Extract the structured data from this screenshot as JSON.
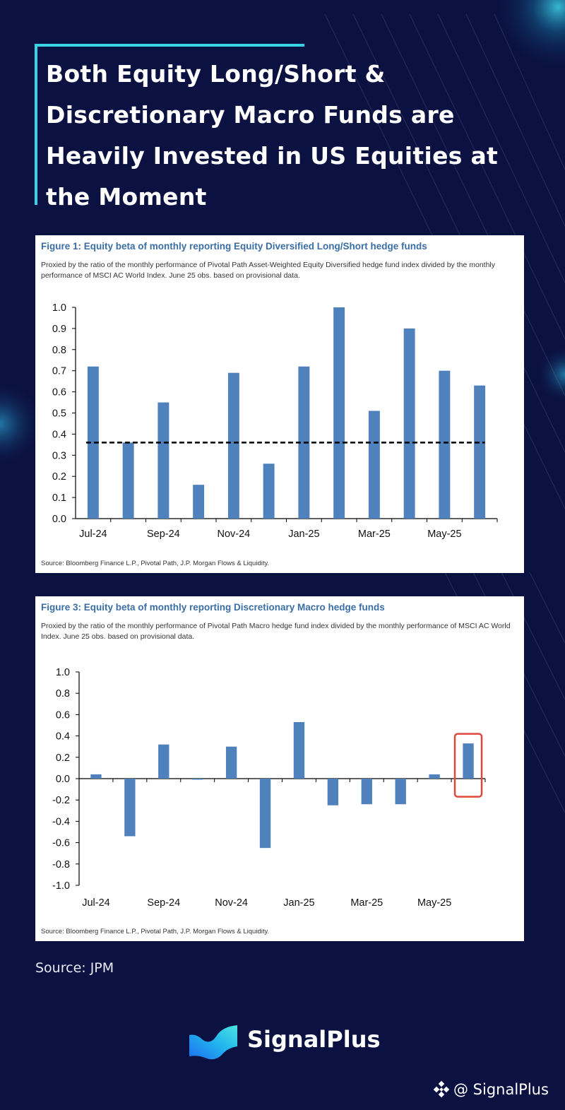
{
  "headline": "Both Equity Long/Short & Discretionary Macro Funds are Heavily Invested in US Equities at the Moment",
  "source_note": "Source: JPM",
  "brand": {
    "name": "SignalPlus",
    "handle": "@ SignalPlus",
    "logo_icon": "signalplus-wave-logo",
    "handle_icon": "diamond-logo-icon"
  },
  "colors": {
    "background": "#0b1242",
    "accent": "#39d3e6",
    "bar": "#4f81bd",
    "highlight": "#e0473c",
    "title": "#3a6ea5"
  },
  "chart_data": [
    {
      "type": "bar",
      "title": "Figure 1: Equity beta of monthly reporting Equity Diversified Long/Short hedge funds",
      "subtitle": "Proxied by the ratio of the monthly performance of Pivotal Path Asset-Weighted Equity Diversified hedge fund index divided by the monthly performance of MSCI AC World Index. June 25 obs. based on provisional data.",
      "source": "Source: Bloomberg Finance L.P., Pivotal Path, J.P. Morgan Flows & Liquidity.",
      "categories": [
        "Jul-24",
        "Aug-24",
        "Sep-24",
        "Oct-24",
        "Nov-24",
        "Dec-24",
        "Jan-25",
        "Feb-25",
        "Mar-25",
        "Apr-25",
        "May-25",
        "Jun-25"
      ],
      "category_labels_shown": [
        "Jul-24",
        "",
        "Sep-24",
        "",
        "Nov-24",
        "",
        "Jan-25",
        "",
        "Mar-25",
        "",
        "May-25",
        ""
      ],
      "values": [
        0.72,
        0.36,
        0.55,
        0.16,
        0.69,
        0.26,
        0.72,
        1.0,
        0.51,
        0.9,
        0.7,
        0.63
      ],
      "average_line": 0.36,
      "ylim": [
        0,
        1.0
      ],
      "yticks": [
        "0.0",
        "0.1",
        "0.2",
        "0.3",
        "0.4",
        "0.5",
        "0.6",
        "0.7",
        "0.8",
        "0.9",
        "1.0"
      ],
      "ytick_values": [
        0,
        0.1,
        0.2,
        0.3,
        0.4,
        0.5,
        0.6,
        0.7,
        0.8,
        0.9,
        1.0
      ],
      "grid": false,
      "legend": "none"
    },
    {
      "type": "bar",
      "title": "Figure 3: Equity beta of monthly reporting Discretionary Macro hedge funds",
      "subtitle": "Proxied by the ratio of the monthly performance of Pivotal Path Macro hedge fund index divided by the monthly performance of MSCI AC World Index. June 25 obs. based on provisional data.",
      "source": "Source: Bloomberg Finance L.P., Pivotal Path, J.P. Morgan Flows & Liquidity.",
      "categories": [
        "Jul-24",
        "Aug-24",
        "Sep-24",
        "Oct-24",
        "Nov-24",
        "Dec-24",
        "Jan-25",
        "Feb-25",
        "Mar-25",
        "Apr-25",
        "May-25",
        "Jun-25"
      ],
      "category_labels_shown": [
        "Jul-24",
        "",
        "Sep-24",
        "",
        "Nov-24",
        "",
        "Jan-25",
        "",
        "Mar-25",
        "",
        "May-25",
        ""
      ],
      "values": [
        0.04,
        -0.54,
        0.32,
        -0.01,
        0.3,
        -0.65,
        0.53,
        -0.25,
        -0.24,
        -0.24,
        0.04,
        0.33
      ],
      "highlighted_category": "Jun-25",
      "ylim": [
        -1.0,
        1.0
      ],
      "yticks": [
        "-1.0",
        "-0.8",
        "-0.6",
        "-0.4",
        "-0.2",
        "0.0",
        "0.2",
        "0.4",
        "0.6",
        "0.8",
        "1.0"
      ],
      "ytick_values": [
        -1.0,
        -0.8,
        -0.6,
        -0.4,
        -0.2,
        0,
        0.2,
        0.4,
        0.6,
        0.8,
        1.0
      ],
      "grid": false,
      "legend": "none"
    }
  ]
}
